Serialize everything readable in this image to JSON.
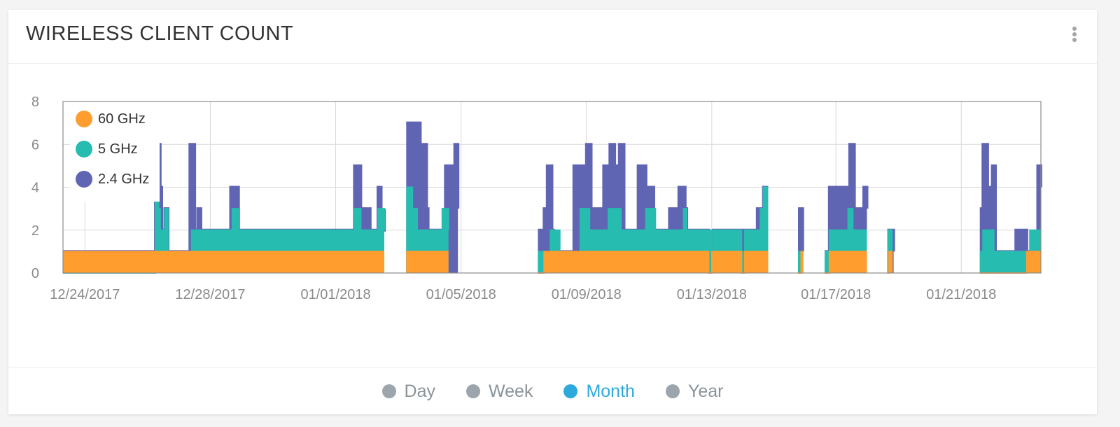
{
  "card": {
    "title": "WIRELESS CLIENT COUNT",
    "menu_icon": "kebab-menu-icon"
  },
  "colors": {
    "ghz60": "#ff9d2e",
    "ghz5": "#26bdb0",
    "ghz24": "#6065b3",
    "active_tab": "#2ea9dd",
    "inactive_tab": "#9ba5ab",
    "grid": "#d9d9d9",
    "axis_text": "#8a8a8a"
  },
  "chart_data": {
    "type": "area",
    "title": "WIRELESS CLIENT COUNT",
    "xlabel": "",
    "ylabel": "",
    "stacked": true,
    "step": true,
    "ylim": [
      0,
      8
    ],
    "xlim": [
      0,
      31.2
    ],
    "yticks": [
      "0",
      "2",
      "4",
      "6",
      "8"
    ],
    "yticks_values": [
      0,
      2,
      4,
      6,
      8
    ],
    "xticks": [
      "12/24/2017",
      "12/28/2017",
      "01/01/2018",
      "01/05/2018",
      "01/09/2018",
      "01/13/2018",
      "01/17/2018",
      "01/21/2018"
    ],
    "xticks_values": [
      0.7,
      4.7,
      8.7,
      12.7,
      16.7,
      20.7,
      24.66,
      28.66
    ],
    "grid": true,
    "legend_position": "top-left",
    "legend": [
      "60 GHz",
      "5 GHz",
      "2.4 GHz"
    ],
    "series": [
      {
        "name": "60 GHz",
        "segments": [
          [
            [
              0,
              1
            ],
            [
              10.25,
              1
            ]
          ],
          [
            [
              10.95,
              1
            ],
            [
              12.3,
              1
            ]
          ],
          [
            [
              15.15,
              0
            ],
            [
              15.35,
              1
            ],
            [
              20.55,
              1
            ],
            [
              20.6,
              0
            ],
            [
              20.7,
              1
            ],
            [
              21.6,
              1
            ],
            [
              21.65,
              0
            ],
            [
              21.75,
              1
            ],
            [
              22.5,
              1
            ]
          ],
          [
            [
              23.45,
              0
            ],
            [
              23.55,
              1
            ],
            [
              23.6,
              0
            ]
          ],
          [
            [
              24.3,
              0
            ],
            [
              24.45,
              1
            ],
            [
              25.65,
              1
            ]
          ],
          [
            [
              26.3,
              0
            ],
            [
              26.35,
              1
            ],
            [
              26.45,
              0
            ]
          ],
          [
            [
              29.25,
              0
            ],
            [
              30.7,
              0
            ],
            [
              30.75,
              1
            ],
            [
              31.2,
              1
            ]
          ]
        ]
      },
      {
        "name": "5 GHz",
        "segments": [
          [
            [
              0,
              0
            ],
            [
              2.92,
              0
            ],
            [
              2.95,
              5
            ],
            [
              3.05,
              3
            ],
            [
              3.1,
              2
            ],
            [
              3.25,
              3
            ],
            [
              3.35,
              1
            ],
            [
              4.0,
              1
            ],
            [
              4.1,
              2
            ],
            [
              5.3,
              2
            ],
            [
              5.4,
              3
            ],
            [
              5.6,
              2
            ],
            [
              9.2,
              2
            ],
            [
              9.3,
              3
            ],
            [
              9.5,
              2
            ],
            [
              10.05,
              3
            ],
            [
              10.25,
              2
            ]
          ],
          [
            [
              10.95,
              4
            ],
            [
              11.15,
              3
            ],
            [
              11.3,
              2
            ],
            [
              11.8,
              2
            ],
            [
              12.1,
              3
            ],
            [
              12.3,
              2
            ]
          ],
          [
            [
              15.15,
              1
            ],
            [
              15.35,
              1
            ],
            [
              15.55,
              2
            ],
            [
              15.85,
              1
            ],
            [
              16.4,
              1
            ],
            [
              16.5,
              3
            ],
            [
              16.8,
              2
            ],
            [
              17.2,
              2
            ],
            [
              17.4,
              3
            ],
            [
              17.8,
              2
            ],
            [
              18.3,
              2
            ],
            [
              18.6,
              3
            ],
            [
              18.9,
              2
            ],
            [
              19.4,
              2
            ],
            [
              19.6,
              2
            ],
            [
              19.8,
              3
            ],
            [
              19.9,
              2
            ],
            [
              20.55,
              2
            ],
            [
              20.7,
              1
            ],
            [
              20.75,
              2
            ],
            [
              21.55,
              2
            ],
            [
              21.65,
              1
            ],
            [
              21.75,
              2
            ],
            [
              22.05,
              2
            ],
            [
              22.25,
              3
            ],
            [
              22.35,
              4
            ],
            [
              22.5,
              4
            ]
          ],
          [
            [
              23.45,
              1
            ],
            [
              23.6,
              1
            ]
          ],
          [
            [
              24.3,
              1
            ],
            [
              24.45,
              2
            ],
            [
              24.75,
              2
            ],
            [
              25.05,
              3
            ],
            [
              25.2,
              2
            ],
            [
              25.65,
              2
            ]
          ],
          [
            [
              26.3,
              2
            ],
            [
              26.45,
              1
            ]
          ],
          [
            [
              29.25,
              1
            ],
            [
              29.35,
              2
            ],
            [
              29.7,
              1
            ],
            [
              30.7,
              1
            ],
            [
              30.85,
              2
            ],
            [
              31.2,
              2
            ]
          ]
        ]
      },
      {
        "name": "2.4 GHz",
        "segments": [
          [
            [
              0,
              1
            ],
            [
              2.92,
              1
            ],
            [
              2.95,
              6
            ],
            [
              3.1,
              4
            ],
            [
              3.15,
              2
            ],
            [
              3.25,
              3
            ],
            [
              3.35,
              1
            ],
            [
              4.0,
              1
            ],
            [
              4.05,
              6
            ],
            [
              4.2,
              2
            ],
            [
              4.3,
              3
            ],
            [
              4.4,
              2
            ],
            [
              5.3,
              2
            ],
            [
              5.35,
              4
            ],
            [
              5.6,
              2
            ],
            [
              9.2,
              2
            ],
            [
              9.3,
              5
            ],
            [
              9.5,
              3
            ],
            [
              9.8,
              2
            ],
            [
              10.05,
              4
            ],
            [
              10.15,
              2
            ],
            [
              10.25,
              3
            ]
          ],
          [
            [
              10.95,
              7
            ],
            [
              11.2,
              7
            ],
            [
              11.4,
              6
            ],
            [
              11.6,
              3
            ],
            [
              11.65,
              2
            ],
            [
              12.15,
              2
            ],
            [
              12.2,
              5
            ],
            [
              12.5,
              6
            ],
            [
              12.6,
              3
            ]
          ],
          [
            [
              15.15,
              2
            ],
            [
              15.35,
              3
            ],
            [
              15.45,
              5
            ],
            [
              15.6,
              2
            ],
            [
              15.65,
              1
            ],
            [
              16.25,
              1
            ],
            [
              16.3,
              5
            ],
            [
              16.7,
              6
            ],
            [
              16.85,
              3
            ],
            [
              17.25,
              5
            ],
            [
              17.45,
              6
            ],
            [
              17.6,
              5
            ],
            [
              17.75,
              6
            ],
            [
              17.9,
              2
            ],
            [
              18.35,
              5
            ],
            [
              18.6,
              4
            ],
            [
              18.85,
              2
            ],
            [
              19.35,
              3
            ],
            [
              19.65,
              4
            ],
            [
              19.85,
              3
            ],
            [
              19.9,
              2
            ],
            [
              20.55,
              2
            ],
            [
              20.6,
              1
            ],
            [
              20.75,
              2
            ],
            [
              21.65,
              2
            ],
            [
              21.7,
              1
            ],
            [
              21.75,
              2
            ],
            [
              22.15,
              3
            ],
            [
              22.35,
              4
            ],
            [
              22.5,
              4
            ]
          ],
          [
            [
              23.45,
              3
            ],
            [
              23.6,
              1
            ]
          ],
          [
            [
              24.3,
              1
            ],
            [
              24.45,
              4
            ],
            [
              24.85,
              4
            ],
            [
              25.1,
              6
            ],
            [
              25.25,
              3
            ],
            [
              25.35,
              3
            ],
            [
              25.55,
              4
            ],
            [
              25.65,
              3
            ]
          ],
          [
            [
              26.3,
              2
            ],
            [
              26.5,
              1
            ]
          ],
          [
            [
              29.25,
              3
            ],
            [
              29.35,
              6
            ],
            [
              29.5,
              4
            ],
            [
              29.65,
              5
            ],
            [
              29.75,
              1
            ],
            [
              30.2,
              1
            ],
            [
              30.4,
              2
            ],
            [
              30.75,
              1
            ],
            [
              31.1,
              5
            ],
            [
              31.2,
              4
            ]
          ]
        ]
      }
    ]
  },
  "time_range": {
    "selected": "Month",
    "options": [
      "Day",
      "Week",
      "Month",
      "Year"
    ]
  }
}
